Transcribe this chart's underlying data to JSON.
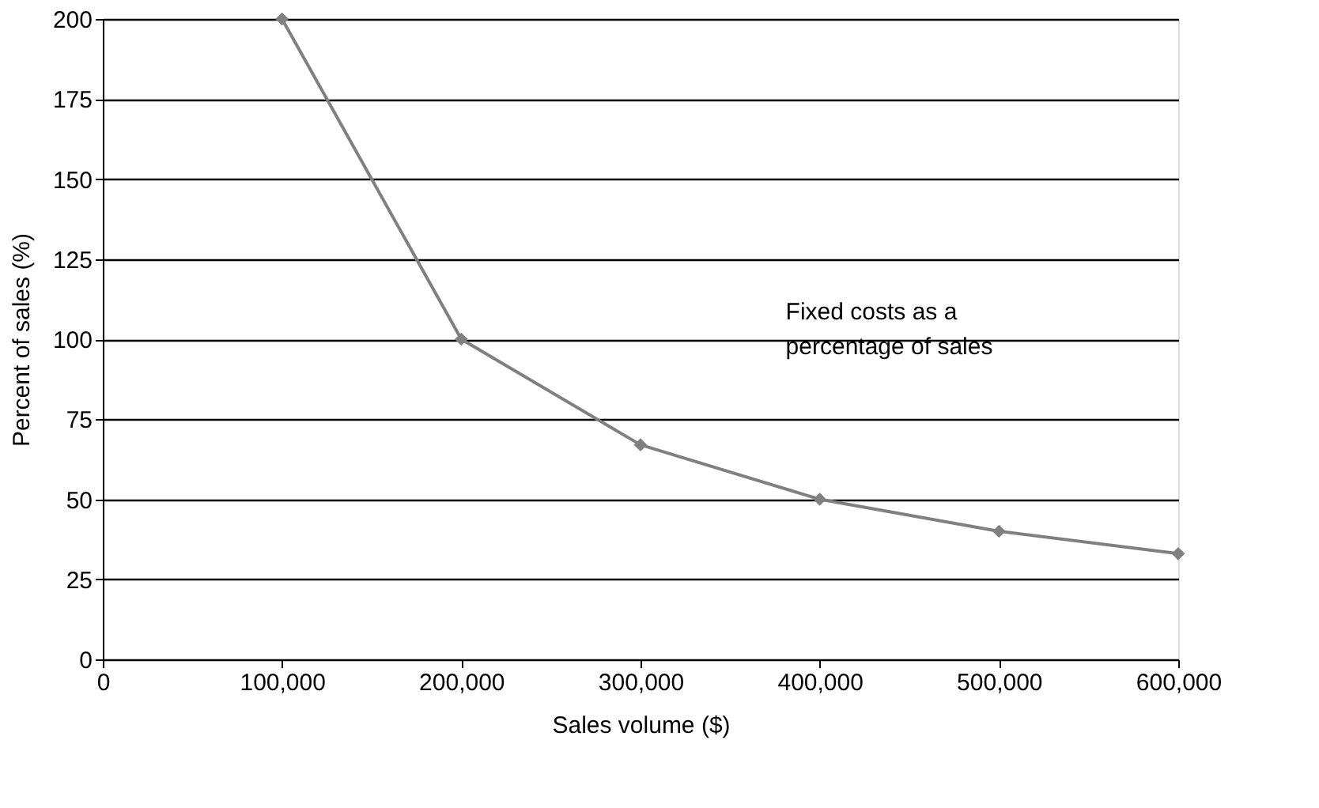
{
  "chart_data": {
    "type": "line",
    "xlabel": "Sales volume ($)",
    "ylabel": "Percent of sales (%)",
    "x": [
      100000,
      200000,
      300000,
      400000,
      500000,
      600000
    ],
    "series": [
      {
        "name": "Fixed costs as a percentage of sales",
        "color": "#808080",
        "values": [
          200,
          100,
          67,
          50,
          40,
          33
        ]
      }
    ],
    "xlim": [
      0,
      600000
    ],
    "xticks": [
      0,
      {
        "value": 100000,
        "label": "100,000"
      },
      {
        "value": 200000,
        "label": "200,000"
      },
      {
        "value": 300000,
        "label": "300,000"
      },
      {
        "value": 400000,
        "label": "400,000"
      },
      {
        "value": 500000,
        "label": "500,000"
      },
      {
        "value": 600000,
        "label": "600,000"
      }
    ],
    "ylim": [
      0,
      200
    ],
    "yticks": [
      0,
      25,
      50,
      75,
      100,
      125,
      150,
      175,
      200
    ],
    "grid": "y",
    "marker": "diamond",
    "line_style": "solid"
  }
}
